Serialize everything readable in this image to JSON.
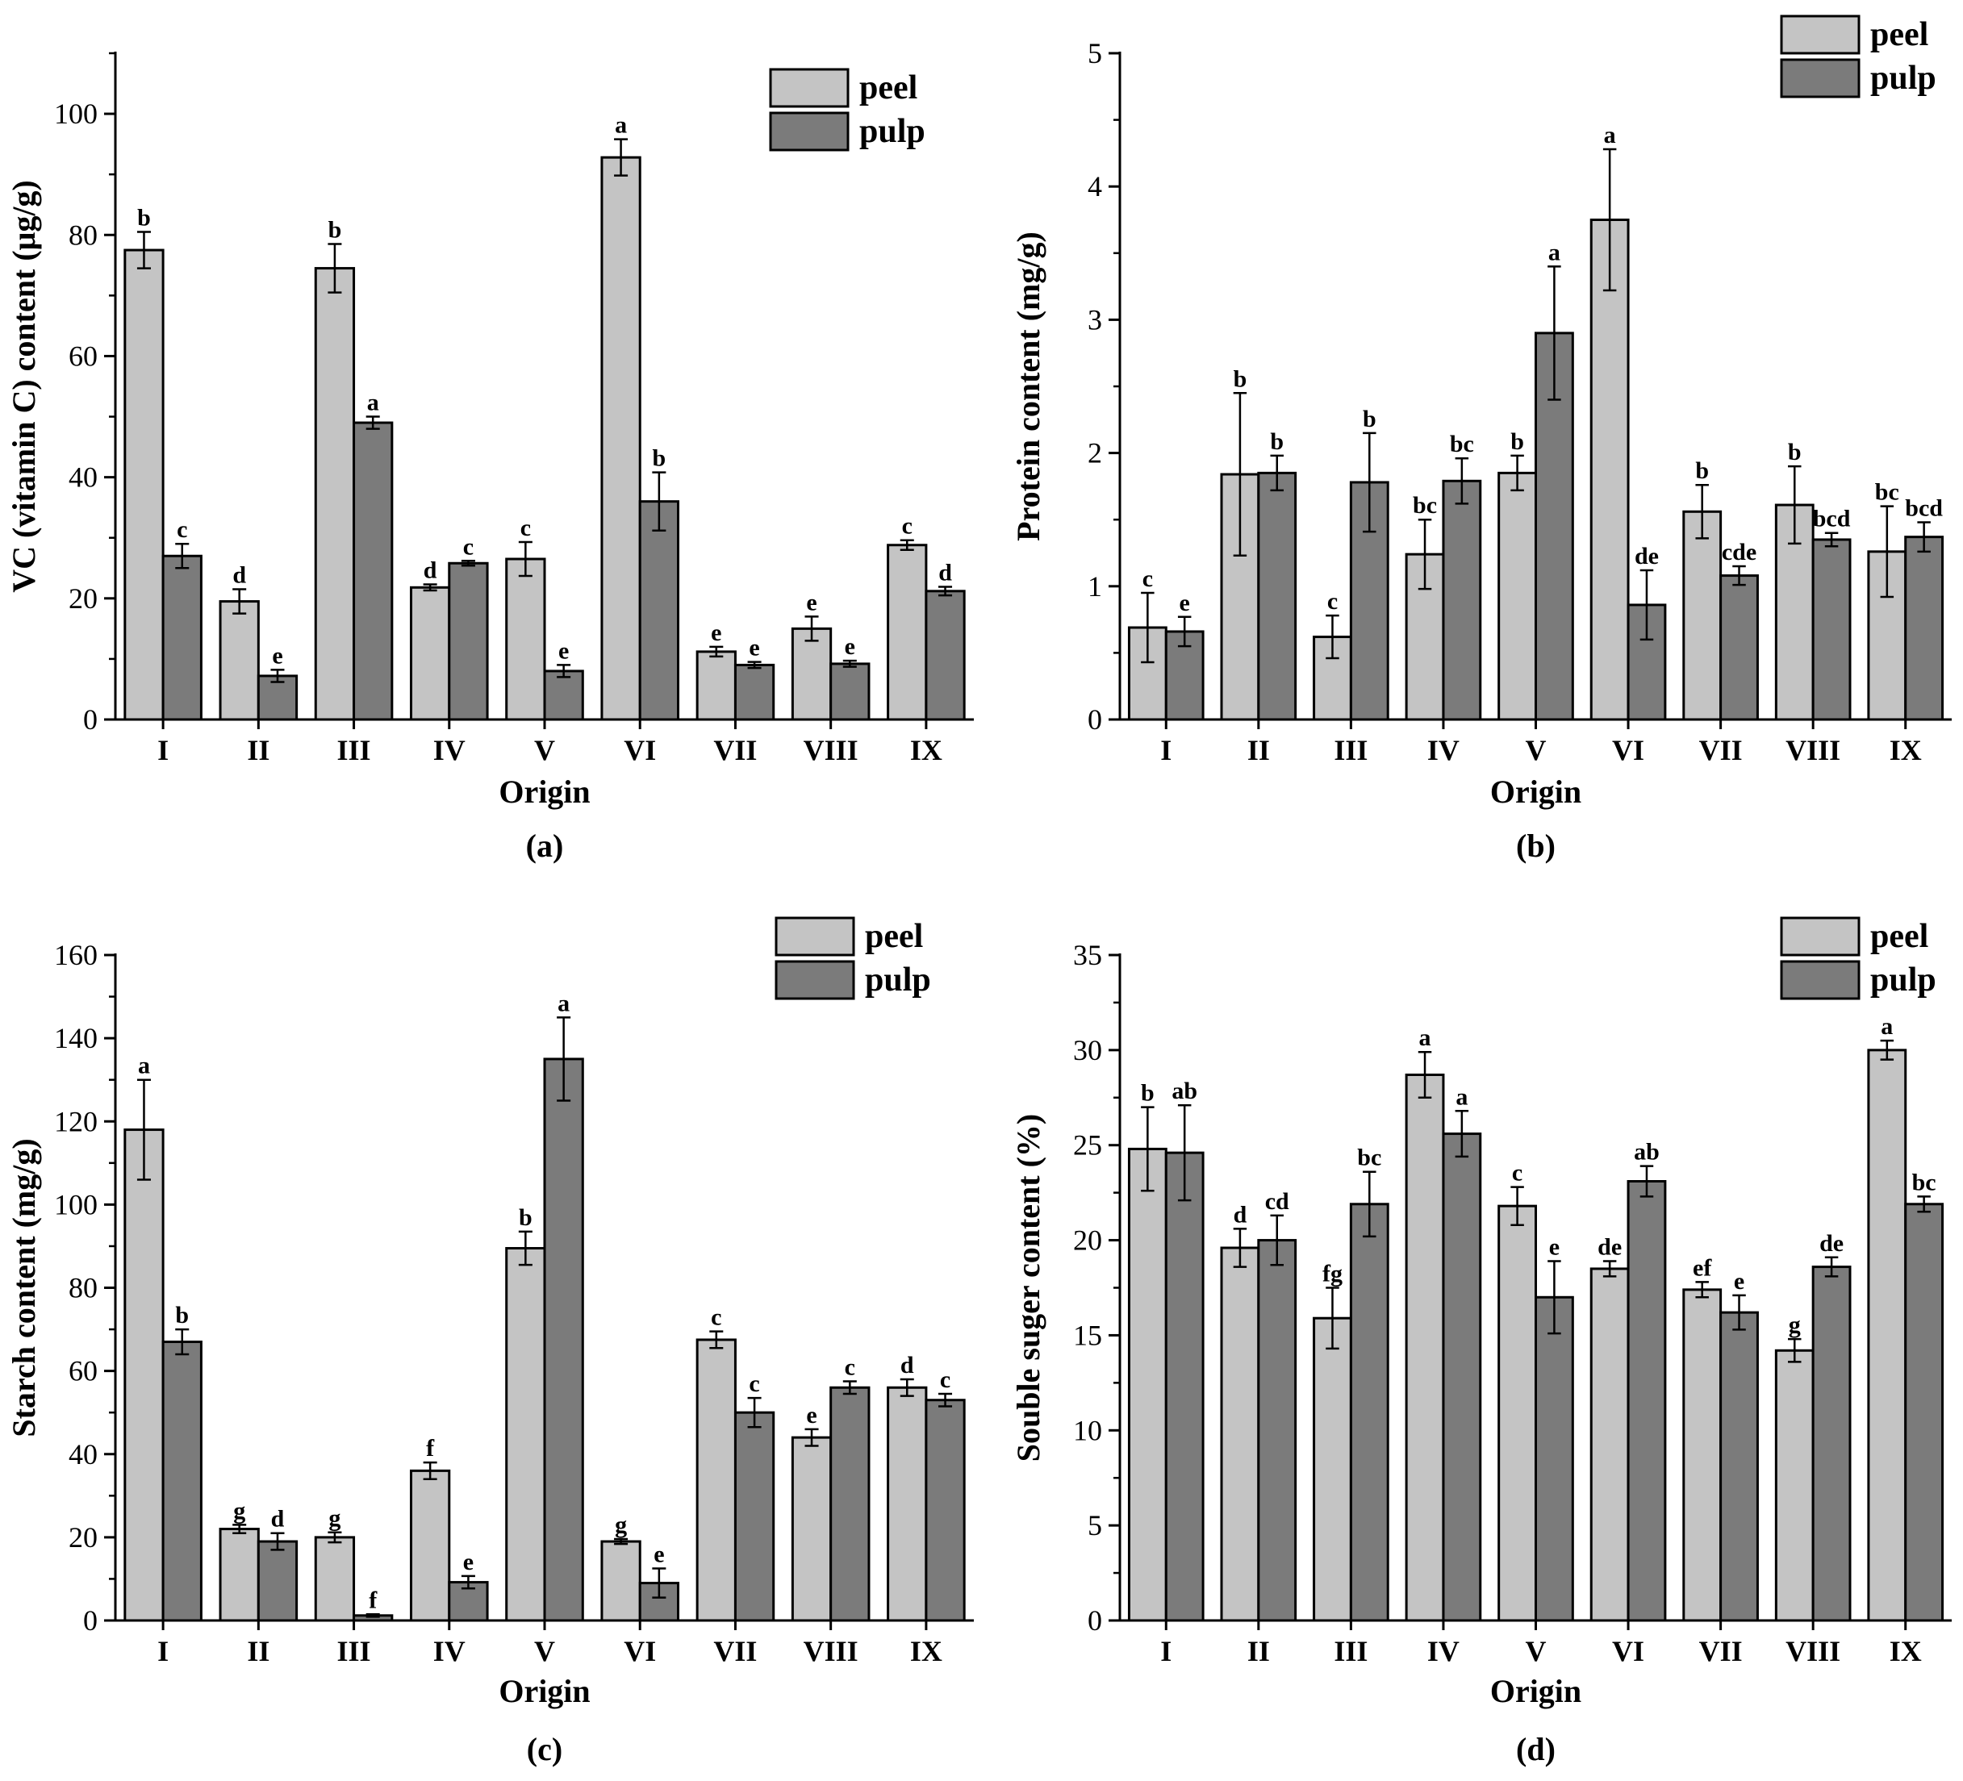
{
  "colors": {
    "peel": "#c4c4c4",
    "pulp": "#7b7b7b",
    "axis": "#000000"
  },
  "chart_data": [
    {
      "type": "bar",
      "panel_label": "(a)",
      "categories": [
        "I",
        "II",
        "III",
        "IV",
        "V",
        "VI",
        "VII",
        "VIII",
        "IX"
      ],
      "xlabel": "Origin",
      "ylabel": "VC (vitamin C) content (μg/g)",
      "ylim": [
        0,
        110
      ],
      "yticks": [
        0,
        20,
        40,
        60,
        80,
        100
      ],
      "legend": "top-right",
      "series": [
        {
          "name": "peel",
          "values": [
            77.5,
            19.5,
            74.5,
            21.8,
            26.5,
            92.8,
            11.2,
            15.0,
            28.8
          ],
          "errors": [
            3.0,
            2.0,
            4.0,
            0.5,
            2.8,
            3.0,
            0.8,
            2.0,
            0.8
          ],
          "letters": [
            "b",
            "d",
            "b",
            "d",
            "c",
            "a",
            "e",
            "e",
            "c"
          ]
        },
        {
          "name": "pulp",
          "values": [
            27.0,
            7.2,
            49.0,
            25.8,
            8.0,
            36.0,
            9.0,
            9.2,
            21.2
          ],
          "errors": [
            2.0,
            1.0,
            1.0,
            0.4,
            1.0,
            4.8,
            0.5,
            0.5,
            0.7
          ],
          "letters": [
            "c",
            "e",
            "a",
            "c",
            "e",
            "b",
            "e",
            "e",
            "d"
          ]
        }
      ]
    },
    {
      "type": "bar",
      "panel_label": "(b)",
      "categories": [
        "I",
        "II",
        "III",
        "IV",
        "V",
        "VI",
        "VII",
        "VIII",
        "IX"
      ],
      "xlabel": "Origin",
      "ylabel": "Protein content (mg/g)",
      "ylim": [
        0,
        5
      ],
      "yticks": [
        0,
        1,
        2,
        3,
        4,
        5
      ],
      "legend": "top-right",
      "series": [
        {
          "name": "peel",
          "values": [
            0.69,
            1.84,
            0.62,
            1.24,
            1.85,
            3.75,
            1.56,
            1.61,
            1.26
          ],
          "errors": [
            0.26,
            0.61,
            0.16,
            0.26,
            0.13,
            0.53,
            0.2,
            0.29,
            0.34
          ],
          "letters": [
            "c",
            "b",
            "c",
            "bc",
            "b",
            "a",
            "b",
            "b",
            "bc"
          ]
        },
        {
          "name": "pulp",
          "values": [
            0.66,
            1.85,
            1.78,
            1.79,
            2.9,
            0.86,
            1.08,
            1.35,
            1.37
          ],
          "errors": [
            0.11,
            0.13,
            0.37,
            0.17,
            0.5,
            0.26,
            0.07,
            0.05,
            0.11
          ],
          "letters": [
            "e",
            "b",
            "b",
            "bc",
            "a",
            "de",
            "cde",
            "bcd",
            "bcd"
          ]
        }
      ]
    },
    {
      "type": "bar",
      "panel_label": "(c)",
      "categories": [
        "I",
        "II",
        "III",
        "IV",
        "V",
        "VI",
        "VII",
        "VIII",
        "IX"
      ],
      "xlabel": "Origin",
      "ylabel": "Starch content (mg/g)",
      "ylim": [
        0,
        160
      ],
      "yticks": [
        0,
        20,
        40,
        60,
        80,
        100,
        120,
        140,
        160
      ],
      "legend": "top-right",
      "series": [
        {
          "name": "peel",
          "values": [
            118,
            22,
            20,
            36,
            89.5,
            19,
            67.5,
            44,
            56
          ],
          "errors": [
            12,
            1.0,
            1.2,
            2.0,
            4.0,
            0.6,
            2.0,
            2.0,
            2.0
          ],
          "letters": [
            "a",
            "g",
            "g",
            "f",
            "b",
            "g",
            "c",
            "e",
            "d"
          ]
        },
        {
          "name": "pulp",
          "values": [
            67,
            19,
            1.2,
            9.2,
            135,
            9,
            50,
            56,
            53
          ],
          "errors": [
            3.0,
            2.0,
            0.3,
            1.5,
            10,
            3.5,
            3.5,
            1.5,
            1.5
          ],
          "letters": [
            "b",
            "d",
            "f",
            "e",
            "a",
            "e",
            "c",
            "c",
            "c"
          ]
        }
      ]
    },
    {
      "type": "bar",
      "panel_label": "(d)",
      "categories": [
        "I",
        "II",
        "III",
        "IV",
        "V",
        "VI",
        "VII",
        "VIII",
        "IX"
      ],
      "xlabel": "Origin",
      "ylabel": "Souble suger content (%)",
      "ylim": [
        0,
        35
      ],
      "yticks": [
        0,
        5,
        10,
        15,
        20,
        25,
        30,
        35
      ],
      "legend": "top-right",
      "series": [
        {
          "name": "peel",
          "values": [
            24.8,
            19.6,
            15.9,
            28.7,
            21.8,
            18.5,
            17.4,
            14.2,
            30.0
          ],
          "errors": [
            2.2,
            1.0,
            1.6,
            1.2,
            1.0,
            0.4,
            0.4,
            0.6,
            0.5
          ],
          "letters": [
            "b",
            "d",
            "fg",
            "a",
            "c",
            "de",
            "ef",
            "g",
            "a"
          ]
        },
        {
          "name": "pulp",
          "values": [
            24.6,
            20.0,
            21.9,
            25.6,
            17.0,
            23.1,
            16.2,
            18.6,
            21.9
          ],
          "errors": [
            2.5,
            1.3,
            1.7,
            1.2,
            1.9,
            0.8,
            0.9,
            0.5,
            0.4
          ],
          "letters": [
            "ab",
            "cd",
            "bc",
            "a",
            "e",
            "ab",
            "e",
            "de",
            "bc"
          ]
        }
      ]
    }
  ]
}
